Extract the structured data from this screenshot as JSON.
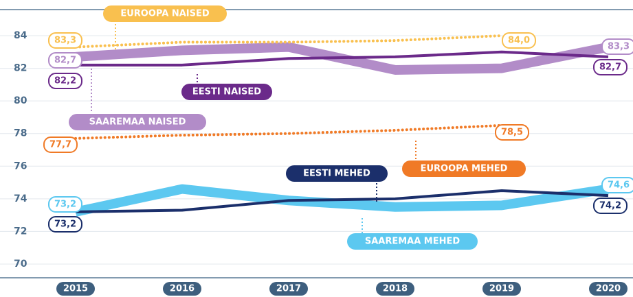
{
  "chart_data": {
    "type": "line",
    "categories": [
      "2015",
      "2016",
      "2017",
      "2018",
      "2019",
      "2020"
    ],
    "ylim": [
      70,
      84
    ],
    "yticks": [
      70,
      72,
      74,
      76,
      78,
      80,
      82,
      84
    ],
    "grid": true,
    "series": [
      {
        "name": "SAAREMAA NAISED",
        "color": "#b28cc8",
        "style": "thick",
        "values": [
          82.7,
          83.1,
          83.3,
          81.9,
          82.0,
          83.3
        ],
        "value_labels": [
          "82,7",
          null,
          null,
          null,
          null,
          "83,3"
        ]
      },
      {
        "name": "SAAREMAA MEHED",
        "color": "#5cc8f0",
        "style": "thick",
        "values": [
          73.2,
          74.6,
          73.9,
          73.5,
          73.6,
          74.6
        ],
        "value_labels": [
          "73,2",
          null,
          null,
          null,
          null,
          "74,6"
        ]
      },
      {
        "name": "EESTI NAISED",
        "color": "#6b2a8a",
        "style": "solid",
        "values": [
          82.2,
          82.2,
          82.6,
          82.7,
          83.0,
          82.7
        ],
        "value_labels": [
          "82,2",
          null,
          null,
          null,
          null,
          "82,7"
        ]
      },
      {
        "name": "EESTI MEHED",
        "color": "#1b2f6b",
        "style": "solid",
        "values": [
          73.2,
          73.3,
          73.9,
          74.0,
          74.5,
          74.2
        ],
        "value_labels": [
          "73,2",
          null,
          null,
          null,
          null,
          "74,2"
        ]
      },
      {
        "name": "EUROOPA NAISED",
        "color": "#f9c04f",
        "style": "dotted",
        "values": [
          83.3,
          83.6,
          83.6,
          83.7,
          84.0,
          null
        ],
        "value_labels": [
          "83,3",
          null,
          null,
          null,
          "84,0",
          null
        ]
      },
      {
        "name": "EUROOPA MEHED",
        "color": "#f07a26",
        "style": "dotted",
        "values": [
          77.7,
          77.9,
          78.0,
          78.2,
          78.5,
          null
        ],
        "value_labels": [
          "77,7",
          null,
          null,
          null,
          "78,5",
          null
        ]
      }
    ]
  }
}
